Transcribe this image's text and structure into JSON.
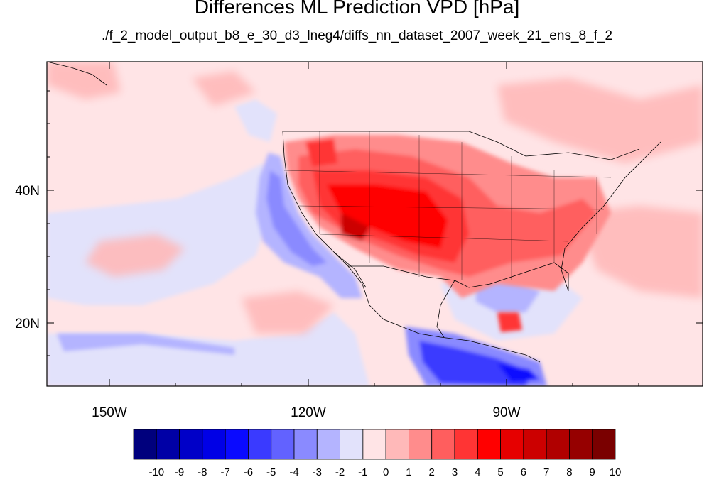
{
  "title": "Differences ML Prediction VPD [hPa]",
  "subtitle": "./f_2_model_output_b8_e_30_d3_lneg4/diffs_nn_dataset_2007_week_21_ens_8_f_2",
  "lon_range": [
    -160,
    -60
  ],
  "lat_range": [
    10.5,
    59.5
  ],
  "lon_labels": [
    "150W",
    "120W",
    "90W"
  ],
  "lat_labels": [
    "40N",
    "20N"
  ],
  "colorbar": {
    "labels": [
      "-10",
      "-9",
      "-8",
      "-7",
      "-6",
      "-5",
      "-4",
      "-3",
      "-2",
      "-1",
      "0",
      "1",
      "2",
      "3",
      "4",
      "5",
      "6",
      "7",
      "8",
      "9",
      "10"
    ],
    "colors": [
      "#00007d",
      "#0000a6",
      "#0000c8",
      "#0000e6",
      "#0a0aff",
      "#3a3aff",
      "#6262ff",
      "#8a8aff",
      "#b4b4ff",
      "#e2e2fb",
      "#ffe4e6",
      "#ffb9b9",
      "#ff8c8c",
      "#ff5e5e",
      "#ff3434",
      "#ff0000",
      "#e60000",
      "#cc0000",
      "#b00000",
      "#960000",
      "#7a0000"
    ]
  },
  "colors": {
    "background_field": "#ffe4e6",
    "coastline": "#000000"
  }
}
